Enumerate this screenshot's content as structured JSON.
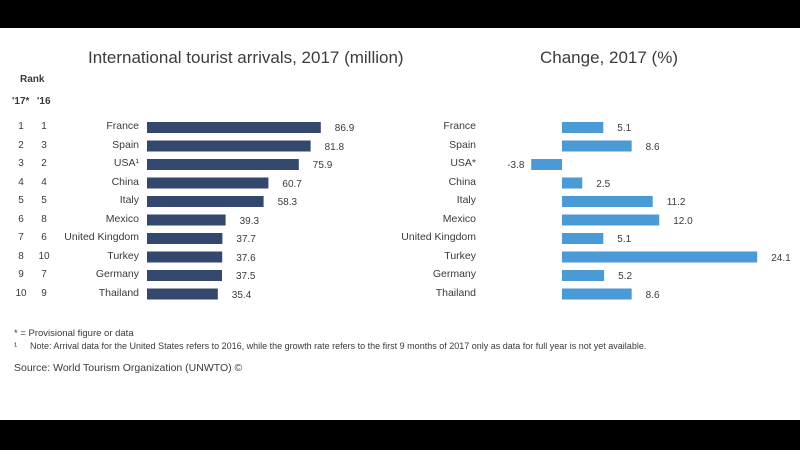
{
  "header": {
    "rank": "Rank",
    "rank17": "'17*",
    "rank16": "'16"
  },
  "chart_data": [
    {
      "type": "bar",
      "title": "International tourist arrivals, 2017 (million)",
      "categories": [
        "France",
        "Spain",
        "USA¹",
        "China",
        "Italy",
        "Mexico",
        "United Kingdom",
        "Turkey",
        "Germany",
        "Thailand"
      ],
      "values": [
        86.9,
        81.8,
        75.9,
        60.7,
        58.3,
        39.3,
        37.7,
        37.6,
        37.5,
        35.4
      ],
      "value_labels": [
        "86.9",
        "81.8",
        "75.9",
        "60.7",
        "58.3",
        "39.3",
        "37.7",
        "37.6",
        "37.5",
        "35.4"
      ],
      "rank_2017": [
        "1",
        "2",
        "3",
        "4",
        "5",
        "6",
        "7",
        "8",
        "9",
        "10"
      ],
      "rank_2016": [
        "1",
        "3",
        "2",
        "4",
        "5",
        "8",
        "6",
        "10",
        "7",
        "9"
      ],
      "orientation": "horizontal",
      "color": "#34476d",
      "xlim": [
        0,
        100
      ],
      "grid": false
    },
    {
      "type": "bar",
      "title": "Change, 2017 (%)",
      "categories": [
        "France",
        "Spain",
        "USA*",
        "China",
        "Italy",
        "Mexico",
        "United Kingdom",
        "Turkey",
        "Germany",
        "Thailand"
      ],
      "values": [
        5.1,
        8.6,
        -3.8,
        2.5,
        11.2,
        12.0,
        5.1,
        24.1,
        5.2,
        8.6
      ],
      "value_labels": [
        "5.1",
        "8.6",
        "-3.8",
        "2.5",
        "11.2",
        "12.0",
        "5.1",
        "24.1",
        "5.2",
        "8.6"
      ],
      "orientation": "horizontal",
      "color": "#4a9ad6",
      "xlim": [
        -5,
        25
      ],
      "grid": false
    }
  ],
  "footnotes": {
    "provisional": "* = Provisional figure or data",
    "note_marker": "¹",
    "note": "Note: Arrival data for the United States refers to 2016, while the growth rate refers to the first 9 months of 2017 only as data for full year is not yet available."
  },
  "source": "Source: World Tourism Organization (UNWTO) ©"
}
